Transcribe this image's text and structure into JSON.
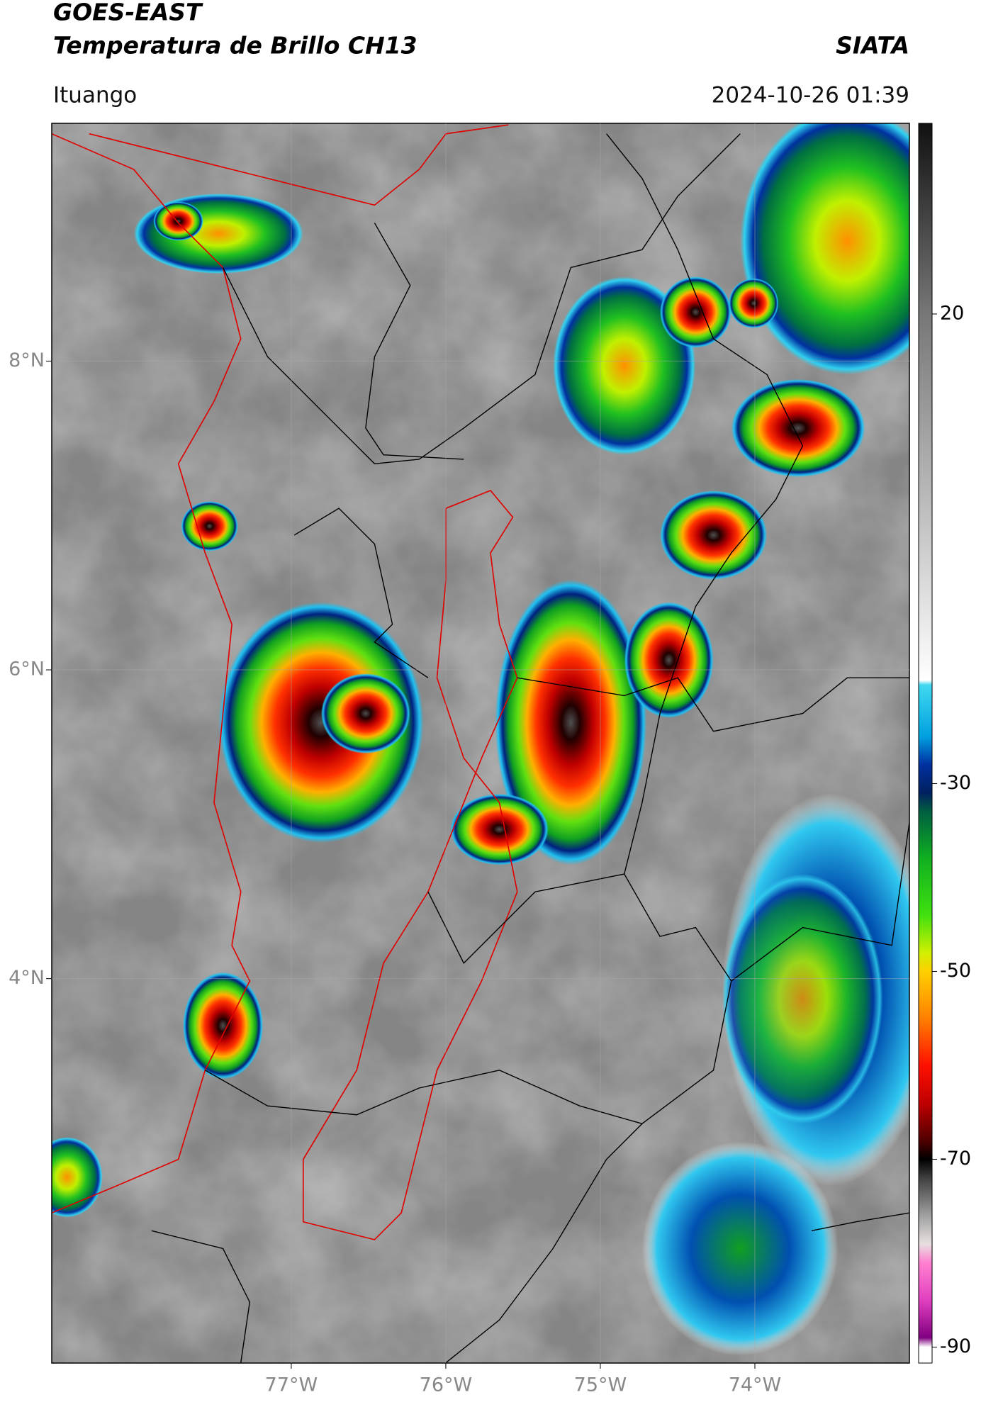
{
  "header": {
    "title": "GOES-EAST",
    "subtitle": "Temperatura de Brillo CH13",
    "credit": "SIATA",
    "location": "Ituango",
    "timestamp": "2024-10-26 01:39"
  },
  "map": {
    "xlim": [
      -78.55,
      -73.0
    ],
    "ylim": [
      1.51,
      9.54
    ],
    "grid": true,
    "xticks": [
      {
        "value": -77,
        "label": "77°W"
      },
      {
        "value": -76,
        "label": "76°W"
      },
      {
        "value": -75,
        "label": "75°W"
      },
      {
        "value": -74,
        "label": "74°W"
      }
    ],
    "yticks": [
      {
        "value": 8,
        "label": "8°N"
      },
      {
        "value": 6,
        "label": "6°N"
      },
      {
        "value": 4,
        "label": "4°N"
      }
    ]
  },
  "colorbar": {
    "clim": [
      -91.7,
      40.3
    ],
    "ticks": [
      20,
      -30,
      -50,
      -70,
      -90
    ],
    "colormap": [
      {
        "value": 40.3,
        "color": "#111111"
      },
      {
        "value": 20,
        "color": "#777777"
      },
      {
        "value": 0,
        "color": "#bbbbbb"
      },
      {
        "value": -19,
        "color": "#ffffff"
      },
      {
        "value": -19.5,
        "color": "#40d8f0"
      },
      {
        "value": -25,
        "color": "#00a0e0"
      },
      {
        "value": -28,
        "color": "#0030a0"
      },
      {
        "value": -31,
        "color": "#002060"
      },
      {
        "value": -33,
        "color": "#006040"
      },
      {
        "value": -38,
        "color": "#10b020"
      },
      {
        "value": -44,
        "color": "#40e010"
      },
      {
        "value": -48,
        "color": "#d0f000"
      },
      {
        "value": -50,
        "color": "#ffd000"
      },
      {
        "value": -55,
        "color": "#ff8000"
      },
      {
        "value": -60,
        "color": "#ff1000"
      },
      {
        "value": -64,
        "color": "#c00000"
      },
      {
        "value": -68,
        "color": "#500000"
      },
      {
        "value": -70,
        "color": "#000000"
      },
      {
        "value": -72,
        "color": "#404040"
      },
      {
        "value": -76,
        "color": "#a0a0a0"
      },
      {
        "value": -79,
        "color": "#e8e0e0"
      },
      {
        "value": -81,
        "color": "#ff80d0"
      },
      {
        "value": -85,
        "color": "#e040c0"
      },
      {
        "value": -89,
        "color": "#800080"
      },
      {
        "value": -90,
        "color": "#ffffff"
      },
      {
        "value": -91.7,
        "color": "#ffffff"
      }
    ]
  }
}
